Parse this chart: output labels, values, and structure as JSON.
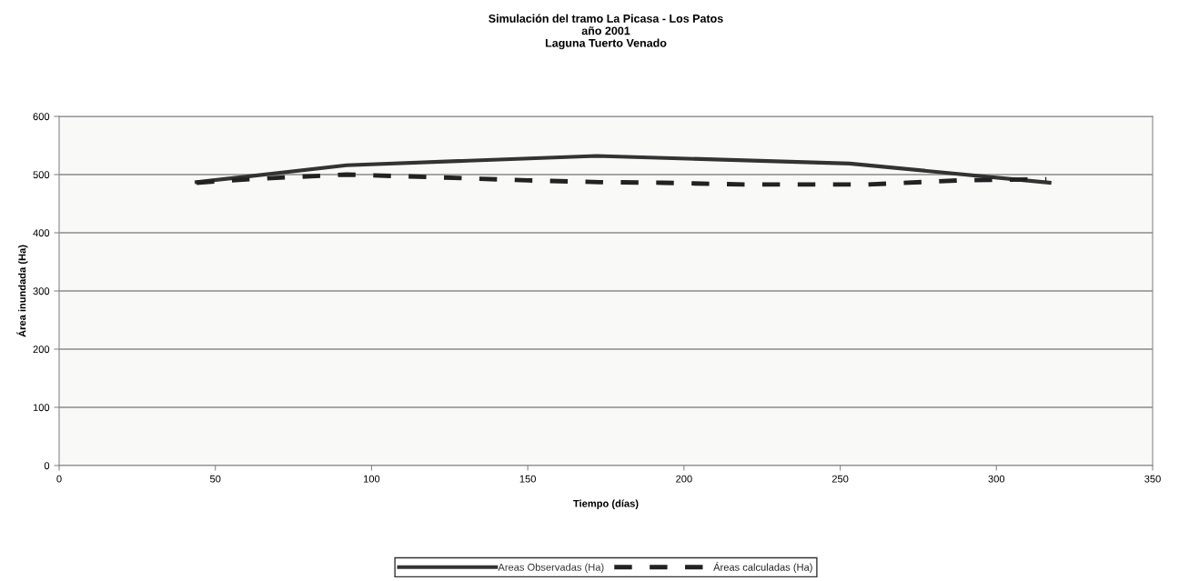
{
  "chart_data": {
    "type": "line",
    "title": "Simulación del tramo La Picasa - Los Patos\naño 2001\nLaguna Tuerto Venado",
    "xlabel": "Tiempo (días)",
    "ylabel": "Área inundada (Ha)",
    "xlim": [
      0,
      350
    ],
    "xticks": [
      0,
      50,
      100,
      150,
      200,
      250,
      300,
      350
    ],
    "ylim": [
      0,
      600
    ],
    "yticks": [
      0,
      100,
      200,
      300,
      400,
      500,
      600
    ],
    "grid": "y",
    "legend": "bottom",
    "marker": "none",
    "series": [
      {
        "name": "Areas Observadas (Ha)",
        "color": "#333333",
        "line_style": "solid",
        "x": [
          44,
          92,
          172,
          253,
          317
        ],
        "values": [
          487,
          516,
          532,
          519,
          486
        ]
      },
      {
        "name": "Áreas calculadas (Ha)",
        "color": "#222222",
        "line_style": "dashed",
        "x": [
          44,
          64,
          92,
          123,
          150,
          173,
          193,
          219,
          259,
          288,
          316
        ],
        "values": [
          486,
          493,
          500,
          495,
          490,
          487,
          486,
          483,
          483,
          490,
          492
        ]
      }
    ]
  }
}
